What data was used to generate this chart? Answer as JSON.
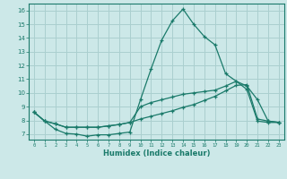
{
  "xlabel": "Humidex (Indice chaleur)",
  "bg_color": "#cce8e8",
  "grid_color": "#aacfcf",
  "line_color": "#1a7a6a",
  "xlim": [
    -0.5,
    23.5
  ],
  "ylim": [
    6.6,
    16.5
  ],
  "xticks": [
    0,
    1,
    2,
    3,
    4,
    5,
    6,
    7,
    8,
    9,
    10,
    11,
    12,
    13,
    14,
    15,
    16,
    17,
    18,
    19,
    20,
    21,
    22,
    23
  ],
  "yticks": [
    7,
    8,
    9,
    10,
    11,
    12,
    13,
    14,
    15,
    16
  ],
  "line1_x": [
    0,
    1,
    2,
    3,
    4,
    5,
    6,
    7,
    8,
    9,
    10,
    11,
    12,
    13,
    14,
    15,
    16,
    17,
    18,
    19,
    20,
    21,
    22,
    23
  ],
  "line1_y": [
    8.6,
    7.95,
    7.35,
    7.05,
    7.0,
    6.85,
    6.95,
    6.95,
    7.05,
    7.15,
    9.5,
    11.75,
    13.85,
    15.25,
    16.1,
    15.0,
    14.1,
    13.5,
    11.4,
    10.85,
    10.25,
    7.95,
    7.85,
    7.85
  ],
  "line2_x": [
    0,
    1,
    2,
    3,
    4,
    5,
    6,
    7,
    8,
    9,
    10,
    11,
    12,
    13,
    14,
    15,
    16,
    17,
    18,
    19,
    20,
    21,
    22,
    23
  ],
  "line2_y": [
    8.6,
    7.95,
    7.75,
    7.5,
    7.5,
    7.5,
    7.5,
    7.6,
    7.7,
    7.85,
    9.0,
    9.3,
    9.5,
    9.7,
    9.9,
    10.0,
    10.1,
    10.2,
    10.5,
    10.85,
    10.5,
    9.5,
    7.95,
    7.85
  ],
  "line3_x": [
    0,
    1,
    2,
    3,
    4,
    5,
    6,
    7,
    8,
    9,
    10,
    11,
    12,
    13,
    14,
    15,
    16,
    17,
    18,
    19,
    20,
    21,
    22,
    23
  ],
  "line3_y": [
    8.6,
    7.95,
    7.75,
    7.5,
    7.5,
    7.5,
    7.5,
    7.6,
    7.7,
    7.85,
    8.1,
    8.3,
    8.5,
    8.7,
    8.95,
    9.15,
    9.45,
    9.75,
    10.15,
    10.55,
    10.6,
    8.1,
    7.95,
    7.85
  ]
}
